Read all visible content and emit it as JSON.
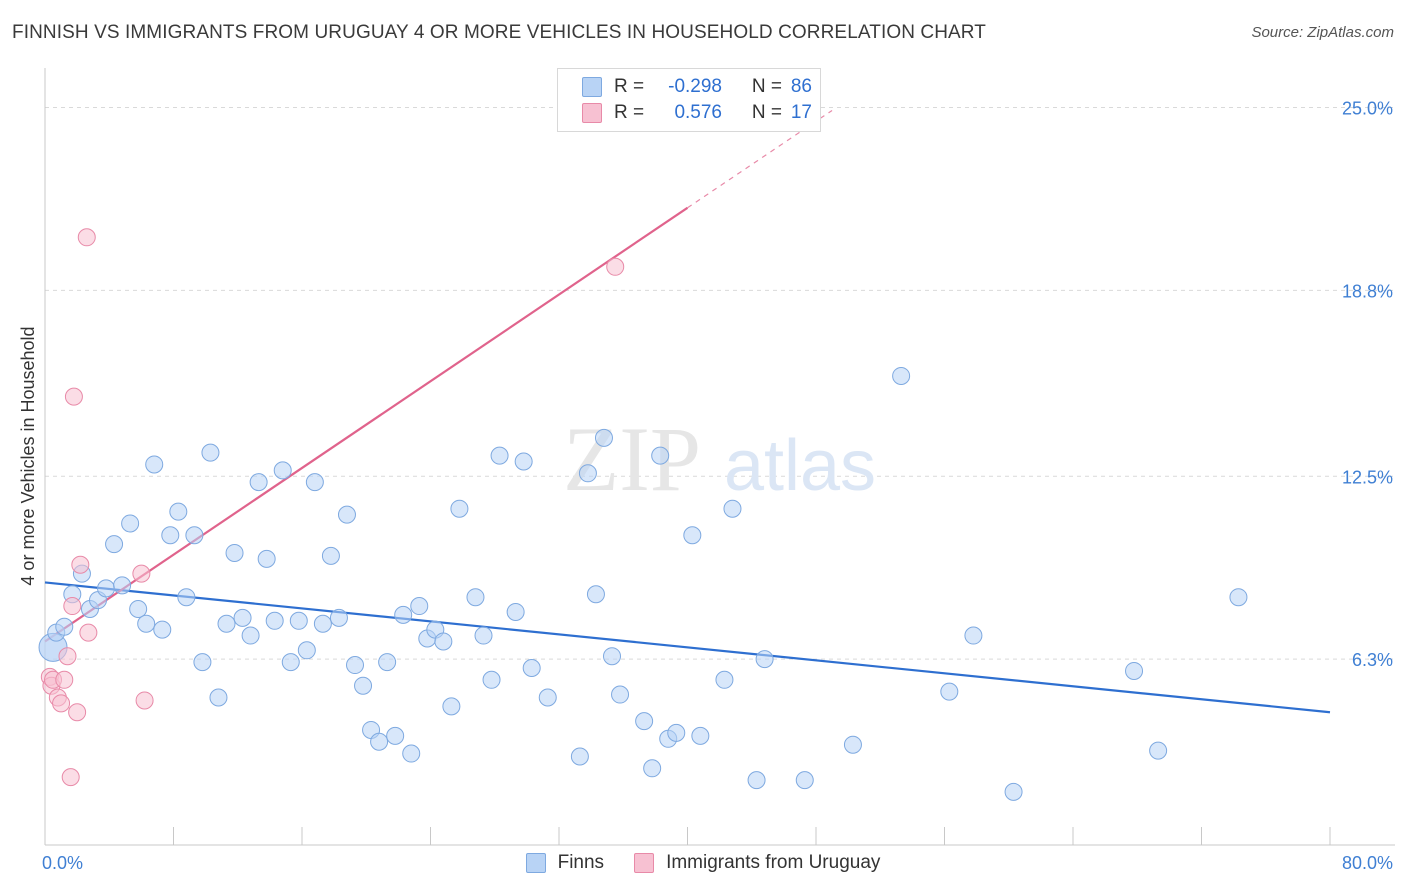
{
  "title": "FINNISH VS IMMIGRANTS FROM URUGUAY 4 OR MORE VEHICLES IN HOUSEHOLD CORRELATION CHART",
  "source": "Source: ZipAtlas.com",
  "watermark": {
    "zip": "ZIP",
    "atlas": "atlas"
  },
  "colors": {
    "finns_fill": "#b8d3f5",
    "finns_stroke": "#7ea9e0",
    "finns_line": "#2e6fd0",
    "uruguay_fill": "#f7c1d2",
    "uruguay_stroke": "#e88aa8",
    "uruguay_line": "#e0638c",
    "axis_text": "#3f7fd3",
    "grid": "#d9d9d9"
  },
  "legend": {
    "rows": [
      {
        "r_label": "R =",
        "r_value": "-0.298",
        "n_label": "N =",
        "n_value": "86"
      },
      {
        "r_label": "R =",
        "r_value": "0.576",
        "n_label": "N =",
        "n_value": "17"
      }
    ]
  },
  "chart_data": {
    "type": "scatter",
    "title": "FINNISH VS IMMIGRANTS FROM URUGUAY 4 OR MORE VEHICLES IN HOUSEHOLD CORRELATION CHART",
    "xlabel": "",
    "ylabel": "4 or more Vehicles in Household",
    "xlim": [
      0,
      80
    ],
    "ylim": [
      0,
      26
    ],
    "x_tick_labels": [
      "0.0%",
      "80.0%"
    ],
    "y_ticks": [
      6.3,
      12.5,
      18.8,
      25.0
    ],
    "y_tick_labels": [
      "6.3%",
      "12.5%",
      "18.8%",
      "25.0%"
    ],
    "series": [
      {
        "name": "Finns",
        "trend": {
          "x0": 0,
          "y0": 8.9,
          "x1": 80,
          "y1": 4.5,
          "dashed_to": null
        },
        "points": [
          [
            0.5,
            6.7
          ],
          [
            0.7,
            7.2
          ],
          [
            1.2,
            7.4
          ],
          [
            1.7,
            8.5
          ],
          [
            2.3,
            9.2
          ],
          [
            2.8,
            8.0
          ],
          [
            3.3,
            8.3
          ],
          [
            3.8,
            8.7
          ],
          [
            4.3,
            10.2
          ],
          [
            4.8,
            8.8
          ],
          [
            5.3,
            10.9
          ],
          [
            5.8,
            8.0
          ],
          [
            6.3,
            7.5
          ],
          [
            6.8,
            12.9
          ],
          [
            7.3,
            7.3
          ],
          [
            7.8,
            10.5
          ],
          [
            8.3,
            11.3
          ],
          [
            8.8,
            8.4
          ],
          [
            9.3,
            10.5
          ],
          [
            9.8,
            6.2
          ],
          [
            10.3,
            13.3
          ],
          [
            10.8,
            5.0
          ],
          [
            11.3,
            7.5
          ],
          [
            11.8,
            9.9
          ],
          [
            12.3,
            7.7
          ],
          [
            12.8,
            7.1
          ],
          [
            13.3,
            12.3
          ],
          [
            13.8,
            9.7
          ],
          [
            14.3,
            7.6
          ],
          [
            14.8,
            12.7
          ],
          [
            15.3,
            6.2
          ],
          [
            15.8,
            7.6
          ],
          [
            16.3,
            6.6
          ],
          [
            16.8,
            12.3
          ],
          [
            17.3,
            7.5
          ],
          [
            17.8,
            9.8
          ],
          [
            18.3,
            7.7
          ],
          [
            18.8,
            11.2
          ],
          [
            19.3,
            6.1
          ],
          [
            19.8,
            5.4
          ],
          [
            20.3,
            3.9
          ],
          [
            20.8,
            3.5
          ],
          [
            21.3,
            6.2
          ],
          [
            21.8,
            3.7
          ],
          [
            22.3,
            7.8
          ],
          [
            22.8,
            3.1
          ],
          [
            23.3,
            8.1
          ],
          [
            23.8,
            7.0
          ],
          [
            24.3,
            7.3
          ],
          [
            24.8,
            6.9
          ],
          [
            25.3,
            4.7
          ],
          [
            25.8,
            11.4
          ],
          [
            26.8,
            8.4
          ],
          [
            27.3,
            7.1
          ],
          [
            27.8,
            5.6
          ],
          [
            28.3,
            13.2
          ],
          [
            29.3,
            7.9
          ],
          [
            29.8,
            13.0
          ],
          [
            30.3,
            6.0
          ],
          [
            31.3,
            5.0
          ],
          [
            33.3,
            3.0
          ],
          [
            33.8,
            12.6
          ],
          [
            34.3,
            8.5
          ],
          [
            34.8,
            13.8
          ],
          [
            35.3,
            6.4
          ],
          [
            35.8,
            5.1
          ],
          [
            37.3,
            4.2
          ],
          [
            37.8,
            2.6
          ],
          [
            38.3,
            13.2
          ],
          [
            38.8,
            3.6
          ],
          [
            39.3,
            3.8
          ],
          [
            40.3,
            10.5
          ],
          [
            40.8,
            3.7
          ],
          [
            42.3,
            5.6
          ],
          [
            42.8,
            11.4
          ],
          [
            44.3,
            2.2
          ],
          [
            44.8,
            6.3
          ],
          [
            47.3,
            2.2
          ],
          [
            50.3,
            3.4
          ],
          [
            53.3,
            15.9
          ],
          [
            56.3,
            5.2
          ],
          [
            57.8,
            7.1
          ],
          [
            60.3,
            1.8
          ],
          [
            67.8,
            5.9
          ],
          [
            69.3,
            3.2
          ],
          [
            74.3,
            8.4
          ]
        ]
      },
      {
        "name": "Immigrants from Uruguay",
        "trend": {
          "x0": 0,
          "y0": 6.9,
          "x1": 40,
          "y1": 21.6,
          "dashed_to": [
            49,
            24.9
          ]
        },
        "points": [
          [
            0.3,
            5.7
          ],
          [
            0.4,
            5.4
          ],
          [
            0.5,
            5.6
          ],
          [
            0.8,
            5.0
          ],
          [
            1.0,
            4.8
          ],
          [
            1.2,
            5.6
          ],
          [
            1.4,
            6.4
          ],
          [
            1.6,
            2.3
          ],
          [
            1.7,
            8.1
          ],
          [
            1.8,
            15.2
          ],
          [
            2.0,
            4.5
          ],
          [
            2.2,
            9.5
          ],
          [
            2.6,
            20.6
          ],
          [
            2.7,
            7.2
          ],
          [
            6.0,
            9.2
          ],
          [
            6.2,
            4.9
          ],
          [
            35.5,
            19.6
          ]
        ]
      }
    ]
  },
  "bottom_legend": {
    "items": [
      "Finns",
      "Immigrants from Uruguay"
    ]
  }
}
